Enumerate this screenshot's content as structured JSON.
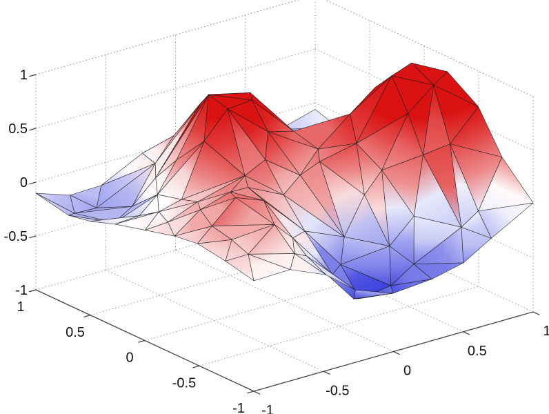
{
  "figure": {
    "description": "MATLAB-style 3D triangulated surface (Delaunay trisurf of scattered data) with interpolated blue-white-red shading, dotted box grid, no title or axis labels",
    "background": "#ffffff"
  },
  "chart_data": {
    "type": "surface",
    "surface_kind": "delaunay-trisurf",
    "x_range": [
      -1,
      1
    ],
    "y_range": [
      -1,
      1
    ],
    "z_range": [
      -1,
      1
    ],
    "x_ticks": {
      "values": [
        -1,
        -0.5,
        0,
        0.5,
        1
      ],
      "labels": [
        "-1",
        "-0.5",
        "0",
        "0.5",
        "1"
      ]
    },
    "y_ticks": {
      "values": [
        -1,
        -0.5,
        0,
        0.5,
        1
      ],
      "labels": [
        "-1",
        "-0.5",
        "0",
        "0.5",
        "1"
      ]
    },
    "z_ticks": {
      "values": [
        -1,
        -0.5,
        0,
        0.5,
        1
      ],
      "labels": [
        "-1",
        "-0.5",
        "0",
        "0.5",
        "1"
      ]
    },
    "title": "",
    "xlabel": "",
    "ylabel": "",
    "zlabel": "",
    "grid": {
      "on": true,
      "style": "dotted",
      "color": "#8a8a8a"
    },
    "view": {
      "azimuth_deg": -37.5,
      "elevation_deg": 30,
      "projection": "orthographic"
    },
    "projection_vectors": {
      "center": [
        412.5,
        280
      ],
      "ex": [
        202.5,
        -57.5
      ],
      "ey": [
        -158,
        -73.5
      ],
      "ez": [
        0,
        -156
      ]
    },
    "colormap": {
      "name": "blue-white-red",
      "negative_max": "#3e44de",
      "zero": "#ffffff",
      "positive_max": "#da1212",
      "saturation_z": 0.6
    },
    "mesh": {
      "edge_color": "#1a1a1a",
      "edge_opacity": 0.8,
      "edge_width": 0.7
    },
    "axis_style": {
      "line_color": "#444444",
      "tick_color": "#444444",
      "label_color": "#111111"
    },
    "surface_model": {
      "note": "z(x,y) = sum of gaussian bumps amp*exp(-((x-x0)^2+(y-y0)^2)/(2*sigma^2)), clamped to [-1,1]",
      "bumps": [
        {
          "x0": -0.1,
          "y0": 0.4,
          "amp": 0.95,
          "sigma": 0.3,
          "feature": "left red peak"
        },
        {
          "x0": 0.75,
          "y0": -0.28,
          "amp": 1.15,
          "sigma": 0.36,
          "feature": "large right red peak (clipped flat top)"
        },
        {
          "x0": -0.5,
          "y0": -0.5,
          "amp": 0.55,
          "sigma": 0.3,
          "feature": "front-left pink mound"
        },
        {
          "x0": -0.15,
          "y0": -0.72,
          "amp": -0.7,
          "sigma": 0.3,
          "feature": "front deep blue dip"
        },
        {
          "x0": 0.55,
          "y0": 0.55,
          "amp": -0.6,
          "sigma": 0.3,
          "feature": "central-back blue dip"
        },
        {
          "x0": -0.6,
          "y0": 0.7,
          "amp": -0.42,
          "sigma": 0.3,
          "feature": "left shallow blue valley"
        },
        {
          "x0": 0.5,
          "y0": -0.8,
          "amp": -0.55,
          "sigma": 0.3,
          "feature": "right-front shallow dip"
        }
      ],
      "sampling": {
        "boundary_step": 0.25,
        "interior_grid": 9,
        "jitter": 0.08,
        "seed": 42
      }
    }
  }
}
